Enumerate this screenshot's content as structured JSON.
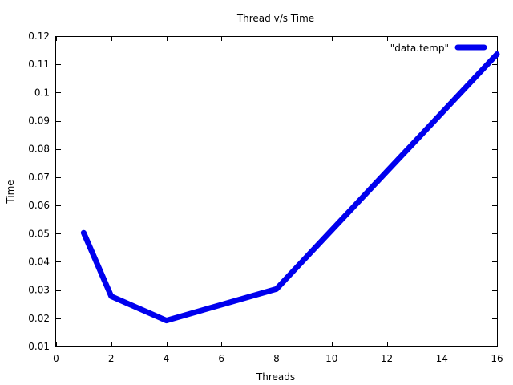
{
  "chart_data": {
    "type": "line",
    "title": "Thread v/s Time",
    "xlabel": "Threads",
    "ylabel": "Time",
    "xlim": [
      0,
      16
    ],
    "ylim": [
      0.01,
      0.12
    ],
    "x_ticks": [
      0,
      2,
      4,
      6,
      8,
      10,
      12,
      14,
      16
    ],
    "x_tick_labels": [
      "0",
      "2",
      "4",
      "6",
      "8",
      "10",
      "12",
      "14",
      "16"
    ],
    "y_ticks": [
      0.01,
      0.02,
      0.03,
      0.04,
      0.05,
      0.06,
      0.07,
      0.08,
      0.09,
      0.1,
      0.11,
      0.12
    ],
    "y_tick_labels": [
      "0.01",
      "0.02",
      "0.03",
      "0.04",
      "0.05",
      "0.06",
      "0.07",
      "0.08",
      "0.09",
      "0.1",
      "0.11",
      "0.12"
    ],
    "grid": false,
    "legend_position": "top-right",
    "series": [
      {
        "name": "\"data.temp\"",
        "color": "#0000ee",
        "x": [
          1,
          2,
          4,
          8,
          16
        ],
        "y": [
          0.0503,
          0.0278,
          0.0192,
          0.0304,
          0.1136
        ]
      }
    ]
  }
}
